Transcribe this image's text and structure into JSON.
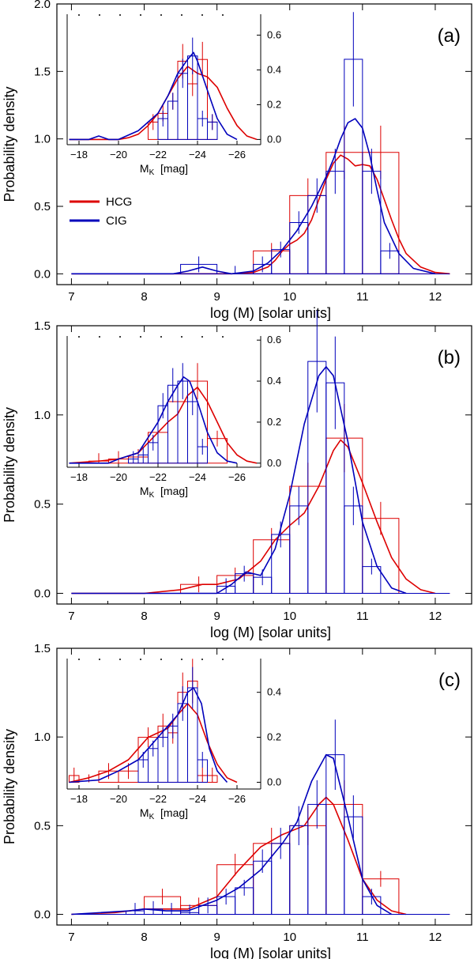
{
  "chart_data": [
    {
      "type": "histogram-kde",
      "panel_label": "(a)",
      "xlabel": "log (M)   [solar units]",
      "ylabel": "Probability density",
      "xlim": [
        6.8,
        12.5
      ],
      "ylim": [
        -0.08,
        2.0
      ],
      "xticks": [
        7,
        8,
        9,
        10,
        11,
        12
      ],
      "xtick_labels": [
        "7",
        "8",
        "9",
        "10",
        "11",
        "12"
      ],
      "yticks": [
        0.0,
        0.5,
        1.0,
        1.5,
        2.0
      ],
      "ytick_labels": [
        "0.0",
        "0.5",
        "1.0",
        "1.5",
        "2.0"
      ],
      "legend": [
        {
          "name": "HCG",
          "color": "#dd0000"
        },
        {
          "name": "CIG",
          "color": "#0000bb"
        }
      ],
      "series": [
        {
          "name": "HCG",
          "color": "#dd0000",
          "hist_edges": [
            9.5,
            10.0,
            10.5,
            11.0,
            11.5
          ],
          "hist_values": [
            0.17,
            0.58,
            0.9,
            0.9
          ],
          "kde_x": [
            7.0,
            8.5,
            9.2,
            9.5,
            9.7,
            9.8,
            9.9,
            10.0,
            10.1,
            10.2,
            10.3,
            10.4,
            10.5,
            10.6,
            10.7,
            10.8,
            10.9,
            11.0,
            11.1,
            11.2,
            11.3,
            11.4,
            11.5,
            11.6,
            11.8,
            12.0,
            12.2
          ],
          "kde_y": [
            0.0,
            0.0,
            0.0,
            0.01,
            0.05,
            0.1,
            0.17,
            0.22,
            0.25,
            0.3,
            0.4,
            0.55,
            0.7,
            0.82,
            0.88,
            0.85,
            0.8,
            0.81,
            0.8,
            0.7,
            0.55,
            0.4,
            0.26,
            0.15,
            0.05,
            0.01,
            0.0
          ]
        },
        {
          "name": "CIG",
          "color": "#0000bb",
          "hist_edges": [
            8.5,
            9.0,
            9.5,
            9.75,
            10.0,
            10.25,
            10.5,
            10.75,
            11.0,
            11.25,
            11.5
          ],
          "hist_values": [
            0.07,
            0.0,
            0.07,
            0.18,
            0.38,
            0.58,
            0.76,
            1.59,
            0.76,
            0.17
          ],
          "kde_x": [
            7.0,
            8.4,
            8.6,
            8.8,
            9.0,
            9.2,
            9.5,
            9.7,
            9.9,
            10.1,
            10.3,
            10.5,
            10.6,
            10.7,
            10.8,
            10.9,
            11.0,
            11.1,
            11.2,
            11.3,
            11.5,
            11.7,
            12.0
          ],
          "kde_y": [
            0.0,
            0.0,
            0.02,
            0.05,
            0.02,
            0.0,
            0.02,
            0.08,
            0.18,
            0.32,
            0.5,
            0.72,
            0.85,
            1.0,
            1.12,
            1.15,
            1.08,
            0.88,
            0.62,
            0.38,
            0.15,
            0.04,
            0.0
          ]
        }
      ],
      "inset": {
        "xlabel": "M_K  [mag]",
        "xlim": [
          -17.4,
          -27.2
        ],
        "ylim": [
          -0.03,
          0.72
        ],
        "xticks": [
          -18,
          -20,
          -22,
          -24,
          -26
        ],
        "xtick_labels": [
          "−18",
          "−20",
          "−22",
          "−24",
          "−26"
        ],
        "yticks": [
          0.0,
          0.2,
          0.4,
          0.6
        ],
        "ytick_labels": [
          "0.0",
          "0.2",
          "0.4",
          "0.6"
        ],
        "series": [
          {
            "name": "HCG",
            "color": "#dd0000",
            "hist_edges": [
              -21.5,
              -22.0,
              -22.5,
              -23.0,
              -23.5,
              -24.0,
              -24.5,
              -25.0
            ],
            "hist_values": [
              0.1,
              0.15,
              0.22,
              0.45,
              0.32,
              0.46,
              0.1
            ],
            "kde_x": [
              -17.5,
              -20.0,
              -20.5,
              -21.0,
              -21.5,
              -22.0,
              -22.5,
              -23.0,
              -23.5,
              -24.0,
              -24.5,
              -25.0,
              -25.5,
              -26.0,
              -26.5,
              -27.0
            ],
            "kde_y": [
              0.0,
              0.0,
              0.01,
              0.03,
              0.08,
              0.15,
              0.25,
              0.35,
              0.42,
              0.38,
              0.36,
              0.3,
              0.18,
              0.08,
              0.02,
              0.0
            ]
          },
          {
            "name": "CIG",
            "color": "#0000bb",
            "hist_edges": [
              -22.0,
              -22.5,
              -23.0,
              -23.5,
              -24.0,
              -24.5,
              -25.0
            ],
            "hist_values": [
              0.12,
              0.22,
              0.38,
              0.48,
              0.12,
              0.1
            ],
            "kde_x": [
              -17.5,
              -18.5,
              -19.0,
              -19.5,
              -20.0,
              -21.0,
              -22.0,
              -22.5,
              -23.0,
              -23.5,
              -23.8,
              -24.0,
              -24.3,
              -24.6,
              -25.0,
              -25.5,
              -26.0
            ],
            "kde_y": [
              0.0,
              0.0,
              0.02,
              0.0,
              0.0,
              0.05,
              0.15,
              0.25,
              0.38,
              0.46,
              0.5,
              0.45,
              0.35,
              0.25,
              0.12,
              0.03,
              0.0
            ]
          }
        ]
      }
    },
    {
      "type": "histogram-kde",
      "panel_label": "(b)",
      "xlabel": "log (M)   [solar units]",
      "ylabel": "Probability density",
      "xlim": [
        6.8,
        12.5
      ],
      "ylim": [
        -0.06,
        1.5
      ],
      "xticks": [
        7,
        8,
        9,
        10,
        11,
        12
      ],
      "xtick_labels": [
        "7",
        "8",
        "9",
        "10",
        "11",
        "12"
      ],
      "yticks": [
        0.0,
        0.5,
        1.0,
        1.5
      ],
      "ytick_labels": [
        "0.0",
        "0.5",
        "1.0",
        "1.5"
      ],
      "series": [
        {
          "name": "HCG",
          "color": "#dd0000",
          "hist_edges": [
            8.5,
            9.0,
            9.5,
            10.0,
            10.5,
            11.0,
            11.5
          ],
          "hist_values": [
            0.05,
            0.1,
            0.3,
            0.6,
            0.87,
            0.42
          ],
          "kde_x": [
            7.0,
            8.0,
            8.5,
            8.8,
            9.0,
            9.3,
            9.6,
            9.8,
            10.0,
            10.2,
            10.4,
            10.6,
            10.7,
            10.8,
            11.0,
            11.2,
            11.4,
            11.6,
            11.8,
            12.0
          ],
          "kde_y": [
            0.0,
            0.0,
            0.02,
            0.05,
            0.05,
            0.08,
            0.18,
            0.3,
            0.38,
            0.45,
            0.6,
            0.8,
            0.86,
            0.82,
            0.62,
            0.4,
            0.2,
            0.08,
            0.02,
            0.0
          ]
        },
        {
          "name": "CIG",
          "color": "#0000bb",
          "hist_edges": [
            9.0,
            9.25,
            9.5,
            9.75,
            10.0,
            10.25,
            10.5,
            10.75,
            11.0,
            11.25
          ],
          "hist_values": [
            0.04,
            0.11,
            0.09,
            0.33,
            0.49,
            1.3,
            1.18,
            0.49,
            0.15
          ],
          "kde_x": [
            7.0,
            9.0,
            9.2,
            9.4,
            9.6,
            9.8,
            10.0,
            10.2,
            10.4,
            10.5,
            10.6,
            10.8,
            11.0,
            11.2,
            11.4,
            11.6
          ],
          "kde_y": [
            0.0,
            0.0,
            0.05,
            0.12,
            0.1,
            0.25,
            0.55,
            0.95,
            1.22,
            1.27,
            1.22,
            0.85,
            0.4,
            0.15,
            0.03,
            0.0
          ]
        }
      ],
      "inset": {
        "xlabel": "M_K  [mag]",
        "xlim": [
          -17.4,
          -27.2
        ],
        "ylim": [
          -0.02,
          0.62
        ],
        "xticks": [
          -18,
          -20,
          -22,
          -24,
          -26
        ],
        "xtick_labels": [
          "−18",
          "−20",
          "−22",
          "−24",
          "−26"
        ],
        "yticks": [
          0.0,
          0.2,
          0.4,
          0.6
        ],
        "ytick_labels": [
          "0.0",
          "0.2",
          "0.4",
          "0.6"
        ],
        "series": [
          {
            "name": "HCG",
            "color": "#dd0000",
            "hist_edges": [
              -18.5,
              -19.5,
              -20.5,
              -21.5,
              -22.5,
              -23.5,
              -24.5,
              -25.5
            ],
            "hist_values": [
              0.01,
              0.02,
              0.03,
              0.15,
              0.3,
              0.4,
              0.12
            ],
            "kde_x": [
              -17.5,
              -19.0,
              -20.0,
              -21.0,
              -22.0,
              -22.5,
              -23.0,
              -23.5,
              -24.0,
              -24.5,
              -25.0,
              -25.5,
              -26.0,
              -26.5,
              -27.0
            ],
            "kde_y": [
              0.0,
              0.01,
              0.02,
              0.05,
              0.15,
              0.2,
              0.24,
              0.33,
              0.37,
              0.3,
              0.2,
              0.1,
              0.04,
              0.01,
              0.0
            ]
          },
          {
            "name": "CIG",
            "color": "#0000bb",
            "hist_edges": [
              -20.5,
              -21.0,
              -21.5,
              -22.0,
              -22.5,
              -23.0,
              -23.5,
              -24.0,
              -24.5
            ],
            "hist_values": [
              0.02,
              0.04,
              0.1,
              0.28,
              0.38,
              0.4,
              0.3,
              0.08
            ],
            "kde_x": [
              -17.5,
              -19.5,
              -20.0,
              -21.0,
              -22.0,
              -22.5,
              -23.0,
              -23.3,
              -23.6,
              -24.0,
              -24.5,
              -25.0,
              -25.5,
              -26.0
            ],
            "kde_y": [
              0.0,
              0.0,
              0.02,
              0.05,
              0.2,
              0.3,
              0.38,
              0.42,
              0.4,
              0.3,
              0.15,
              0.05,
              0.01,
              0.0
            ]
          }
        ]
      }
    },
    {
      "type": "histogram-kde",
      "panel_label": "(c)",
      "xlabel": "log (M)   [solar units]",
      "ylabel": "Probability density",
      "xlim": [
        6.8,
        12.5
      ],
      "ylim": [
        -0.06,
        1.5
      ],
      "xticks": [
        7,
        8,
        9,
        10,
        11,
        12
      ],
      "xtick_labels": [
        "7",
        "8",
        "9",
        "10",
        "11",
        "12"
      ],
      "yticks": [
        0.0,
        0.5,
        1.0,
        1.5
      ],
      "ytick_labels": [
        "0.0",
        "0.5",
        "1.0",
        "1.5"
      ],
      "series": [
        {
          "name": "HCG",
          "color": "#dd0000",
          "hist_edges": [
            8.0,
            8.5,
            9.0,
            9.5,
            10.0,
            10.5,
            11.0,
            11.5
          ],
          "hist_values": [
            0.1,
            0.05,
            0.28,
            0.4,
            0.5,
            0.62,
            0.2
          ],
          "kde_x": [
            7.0,
            7.6,
            8.0,
            8.3,
            8.6,
            9.0,
            9.3,
            9.6,
            9.9,
            10.2,
            10.4,
            10.5,
            10.6,
            10.8,
            11.0,
            11.2,
            11.4,
            11.6
          ],
          "kde_y": [
            0.0,
            0.01,
            0.03,
            0.03,
            0.03,
            0.1,
            0.25,
            0.38,
            0.45,
            0.5,
            0.62,
            0.66,
            0.62,
            0.42,
            0.2,
            0.08,
            0.02,
            0.0
          ]
        },
        {
          "name": "CIG",
          "color": "#0000bb",
          "hist_edges": [
            7.75,
            8.0,
            8.25,
            8.5,
            8.75,
            9.0,
            9.25,
            9.5,
            9.75,
            10.0,
            10.25,
            10.5,
            10.75,
            11.0,
            11.25
          ],
          "hist_values": [
            0.02,
            0.03,
            0.02,
            0.01,
            0.05,
            0.1,
            0.15,
            0.3,
            0.4,
            0.5,
            0.62,
            0.9,
            0.55,
            0.1
          ],
          "kde_x": [
            7.0,
            7.8,
            8.0,
            8.3,
            8.6,
            9.0,
            9.3,
            9.6,
            9.9,
            10.1,
            10.3,
            10.5,
            10.6,
            10.8,
            11.0,
            11.2,
            11.4
          ],
          "kde_y": [
            0.0,
            0.02,
            0.03,
            0.02,
            0.02,
            0.08,
            0.15,
            0.25,
            0.4,
            0.52,
            0.75,
            0.9,
            0.88,
            0.55,
            0.2,
            0.05,
            0.0
          ]
        }
      ],
      "inset": {
        "xlabel": "M_K  [mag]",
        "xlim": [
          -17.4,
          -27.2
        ],
        "ylim": [
          -0.03,
          0.55
        ],
        "xticks": [
          -18,
          -20,
          -22,
          -24,
          -26
        ],
        "xtick_labels": [
          "−18",
          "−20",
          "−22",
          "−24",
          "−26"
        ],
        "yticks": [
          0.0,
          0.2,
          0.4
        ],
        "ytick_labels": [
          "0.0",
          "0.2",
          "0.4"
        ],
        "series": [
          {
            "name": "HCG",
            "color": "#dd0000",
            "hist_edges": [
              -17.5,
              -18.0,
              -19.0,
              -20.0,
              -21.0,
              -22.0,
              -22.5,
              -23.0,
              -23.5,
              -24.0,
              -24.5,
              -25.0
            ],
            "hist_values": [
              0.03,
              0.0,
              0.05,
              0.05,
              0.2,
              0.25,
              0.22,
              0.4,
              0.45,
              0.03,
              0.03
            ],
            "kde_x": [
              -17.5,
              -18.5,
              -19.5,
              -20.5,
              -21.0,
              -21.5,
              -22.0,
              -22.5,
              -23.0,
              -23.5,
              -24.0,
              -24.5,
              -25.0,
              -25.5,
              -26.0
            ],
            "kde_y": [
              0.0,
              0.02,
              0.05,
              0.1,
              0.15,
              0.2,
              0.22,
              0.24,
              0.3,
              0.35,
              0.3,
              0.18,
              0.08,
              0.02,
              0.0
            ]
          },
          {
            "name": "CIG",
            "color": "#0000bb",
            "hist_edges": [
              -21.0,
              -21.5,
              -22.0,
              -22.5,
              -23.0,
              -23.5,
              -24.0,
              -24.5
            ],
            "hist_values": [
              0.1,
              0.15,
              0.2,
              0.25,
              0.35,
              0.42,
              0.1
            ],
            "kde_x": [
              -17.5,
              -19.0,
              -20.0,
              -21.0,
              -21.5,
              -22.0,
              -22.5,
              -23.0,
              -23.5,
              -23.8,
              -24.2,
              -24.6,
              -25.0,
              -25.5
            ],
            "kde_y": [
              0.0,
              0.01,
              0.05,
              0.1,
              0.15,
              0.2,
              0.25,
              0.3,
              0.4,
              0.42,
              0.35,
              0.15,
              0.05,
              0.0
            ]
          }
        ]
      }
    }
  ]
}
